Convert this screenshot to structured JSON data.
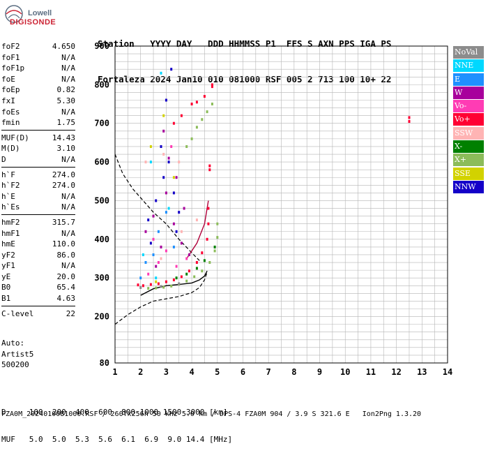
{
  "logo": {
    "line1": "Lowell",
    "line2": "DIGISONDE"
  },
  "header": {
    "line1": "Station   YYYY DAY   DDD HHMMSS P1  FFS S AXN PPS IGA PS",
    "line2": "Fortaleza 2024 Jan10 010 081000 RSF 005 2 713 100 10+ 22"
  },
  "params": [
    {
      "label": "foF2",
      "value": "4.650"
    },
    {
      "label": "foF1",
      "value": "N/A"
    },
    {
      "label": "foF1p",
      "value": "N/A"
    },
    {
      "label": "foE",
      "value": "N/A"
    },
    {
      "label": "foEp",
      "value": "0.82"
    },
    {
      "label": "fxI",
      "value": "5.30"
    },
    {
      "label": "foEs",
      "value": "N/A"
    },
    {
      "label": "fmin",
      "value": "1.75"
    },
    {
      "label": "MUF(D)",
      "value": "14.43"
    },
    {
      "label": "M(D)",
      "value": "3.10"
    },
    {
      "label": "D",
      "value": "N/A"
    },
    {
      "label": "h`F",
      "value": "274.0"
    },
    {
      "label": "h`F2",
      "value": "274.0"
    },
    {
      "label": "h`E",
      "value": "N/A"
    },
    {
      "label": "h`Es",
      "value": "N/A"
    },
    {
      "label": "hmF2",
      "value": "315.7"
    },
    {
      "label": "hmF1",
      "value": "N/A"
    },
    {
      "label": "hmE",
      "value": "110.0"
    },
    {
      "label": "yF2",
      "value": "86.0"
    },
    {
      "label": "yF1",
      "value": "N/A"
    },
    {
      "label": "yE",
      "value": "20.0"
    },
    {
      "label": "B0",
      "value": "65.4"
    },
    {
      "label": "B1",
      "value": "4.63"
    },
    {
      "label": "C-level",
      "value": "22"
    }
  ],
  "auto": {
    "line1": "Auto:",
    "line2": "Artist5",
    "line3": "500200"
  },
  "bottom": {
    "line1": "D     100  200  400  600  800 1000 1500 3000 [km]",
    "line2": "MUF   5.0  5.0  5.3  5.6  6.1  6.9  9.0 14.4 [MHz]"
  },
  "footer": "FZA0M_2024010081000.RSF / 260fx256h 50 kHz 5.0 km / DPS-4 FZA0M 904 / 3.9 S 321.6 E   Ion2Png 1.3.20",
  "legend": [
    {
      "label": "NoVal",
      "color": "#8c8c8c"
    },
    {
      "label": "NNE",
      "color": "#00d8ff"
    },
    {
      "label": "E",
      "color": "#1e90ff"
    },
    {
      "label": "W",
      "color": "#a8009c"
    },
    {
      "label": "Vo-",
      "color": "#ff3cb4"
    },
    {
      "label": "Vo+",
      "color": "#ff0033"
    },
    {
      "label": "SSW",
      "color": "#ffb4b4"
    },
    {
      "label": "X-",
      "color": "#008000"
    },
    {
      "label": "X+",
      "color": "#8cbc5a"
    },
    {
      "label": "SSE",
      "color": "#d2d200"
    },
    {
      "label": "NNW",
      "color": "#1400c8"
    }
  ],
  "chart_data": {
    "type": "scatter",
    "xlim": [
      1,
      14
    ],
    "ylim": [
      80,
      900
    ],
    "xticks": [
      "1",
      "2",
      "3",
      "4",
      "5",
      "6",
      "7",
      "8",
      "9",
      "10",
      "11",
      "12",
      "13",
      "14"
    ],
    "yticks": [
      "900",
      "800",
      "700",
      "600",
      "500",
      "400",
      "300",
      "200",
      "80"
    ],
    "grid": true,
    "series": [
      {
        "name": "Vo+",
        "color": "#ff0033",
        "points": [
          [
            1.9,
            282
          ],
          [
            2.1,
            280
          ],
          [
            2.4,
            283
          ],
          [
            2.7,
            285
          ],
          [
            3.0,
            290
          ],
          [
            3.3,
            295
          ],
          [
            3.6,
            303
          ],
          [
            3.9,
            318
          ],
          [
            4.2,
            340
          ],
          [
            4.4,
            365
          ],
          [
            4.6,
            400
          ],
          [
            4.65,
            440
          ],
          [
            4.65,
            480
          ],
          [
            3.3,
            700
          ],
          [
            3.6,
            720
          ],
          [
            4.0,
            750
          ],
          [
            4.2,
            755
          ],
          [
            4.5,
            770
          ],
          [
            4.8,
            795
          ],
          [
            4.8,
            800
          ],
          [
            12.5,
            705
          ],
          [
            12.5,
            715
          ],
          [
            4.7,
            580
          ],
          [
            4.7,
            590
          ]
        ]
      },
      {
        "name": "X+",
        "color": "#8cbc5a",
        "points": [
          [
            2.3,
            273
          ],
          [
            2.6,
            274
          ],
          [
            2.9,
            276
          ],
          [
            3.2,
            279
          ],
          [
            3.5,
            284
          ],
          [
            3.8,
            292
          ],
          [
            4.1,
            303
          ],
          [
            4.4,
            318
          ],
          [
            4.7,
            340
          ],
          [
            4.9,
            370
          ],
          [
            5.0,
            405
          ],
          [
            5.0,
            440
          ],
          [
            3.8,
            640
          ],
          [
            4.0,
            660
          ],
          [
            4.2,
            690
          ],
          [
            4.4,
            710
          ],
          [
            4.6,
            730
          ],
          [
            4.8,
            750
          ]
        ]
      },
      {
        "name": "X-",
        "color": "#008000",
        "points": [
          [
            3.4,
            300
          ],
          [
            3.8,
            310
          ],
          [
            4.2,
            325
          ],
          [
            4.5,
            345
          ],
          [
            4.9,
            380
          ]
        ]
      },
      {
        "name": "W",
        "color": "#a8009c",
        "points": [
          [
            2.2,
            420
          ],
          [
            2.5,
            460
          ],
          [
            2.8,
            380
          ],
          [
            3.0,
            520
          ],
          [
            3.3,
            440
          ],
          [
            3.6,
            390
          ],
          [
            3.9,
            360
          ],
          [
            2.6,
            330
          ],
          [
            3.1,
            610
          ],
          [
            2.9,
            680
          ],
          [
            3.4,
            560
          ],
          [
            3.7,
            480
          ]
        ]
      },
      {
        "name": "NNW",
        "color": "#1400c8",
        "points": [
          [
            2.3,
            450
          ],
          [
            2.6,
            500
          ],
          [
            2.9,
            560
          ],
          [
            3.1,
            600
          ],
          [
            3.3,
            520
          ],
          [
            2.4,
            390
          ],
          [
            3.5,
            470
          ],
          [
            3.2,
            840
          ],
          [
            3.0,
            760
          ],
          [
            2.8,
            640
          ],
          [
            3.4,
            420
          ]
        ]
      },
      {
        "name": "E",
        "color": "#1e90ff",
        "points": [
          [
            2.0,
            300
          ],
          [
            2.2,
            340
          ],
          [
            2.7,
            420
          ],
          [
            3.0,
            470
          ],
          [
            3.3,
            380
          ],
          [
            2.5,
            360
          ]
        ]
      },
      {
        "name": "NNE",
        "color": "#00d8ff",
        "points": [
          [
            2.1,
            360
          ],
          [
            2.8,
            830
          ],
          [
            2.4,
            600
          ],
          [
            3.1,
            480
          ],
          [
            2.6,
            300
          ]
        ]
      },
      {
        "name": "Vo-",
        "color": "#ff3cb4",
        "points": [
          [
            2.3,
            310
          ],
          [
            2.7,
            340
          ],
          [
            3.0,
            370
          ],
          [
            3.4,
            330
          ],
          [
            3.8,
            350
          ],
          [
            2.5,
            400
          ],
          [
            3.2,
            640
          ]
        ]
      },
      {
        "name": "SSW",
        "color": "#ffb4b4",
        "points": [
          [
            2.2,
            600
          ],
          [
            2.9,
            620
          ],
          [
            3.5,
            600
          ],
          [
            2.8,
            350
          ],
          [
            3.6,
            420
          ],
          [
            4.2,
            450
          ]
        ]
      },
      {
        "name": "SSE",
        "color": "#d2d200",
        "points": [
          [
            2.4,
            640
          ],
          [
            2.9,
            720
          ],
          [
            3.3,
            560
          ],
          [
            2.6,
            290
          ]
        ]
      },
      {
        "name": "NoVal",
        "color": "#8c8c8c",
        "points": [
          [
            2.0,
            275
          ],
          [
            2.8,
            278
          ],
          [
            3.5,
            285
          ]
        ]
      }
    ],
    "curves": {
      "profile": [
        [
          2.0,
          255
        ],
        [
          2.5,
          272
        ],
        [
          3.0,
          280
        ],
        [
          3.5,
          283
        ],
        [
          4.0,
          287
        ],
        [
          4.3,
          295
        ],
        [
          4.5,
          305
        ],
        [
          4.6,
          318
        ]
      ],
      "model_dashed": [
        [
          1.0,
          180
        ],
        [
          1.5,
          205
        ],
        [
          2.0,
          225
        ],
        [
          2.5,
          240
        ],
        [
          3.0,
          246
        ],
        [
          3.5,
          252
        ],
        [
          4.0,
          262
        ],
        [
          4.3,
          275
        ],
        [
          4.5,
          295
        ],
        [
          4.6,
          315
        ]
      ],
      "trace_dashed": [
        [
          1.0,
          620
        ],
        [
          1.3,
          570
        ],
        [
          1.7,
          530
        ],
        [
          2.1,
          500
        ],
        [
          2.5,
          470
        ],
        [
          3.0,
          440
        ],
        [
          3.5,
          400
        ],
        [
          4.0,
          365
        ],
        [
          4.3,
          345
        ]
      ],
      "profile_upper": [
        [
          3.8,
          350
        ],
        [
          4.2,
          390
        ],
        [
          4.5,
          440
        ],
        [
          4.65,
          500
        ]
      ]
    }
  }
}
